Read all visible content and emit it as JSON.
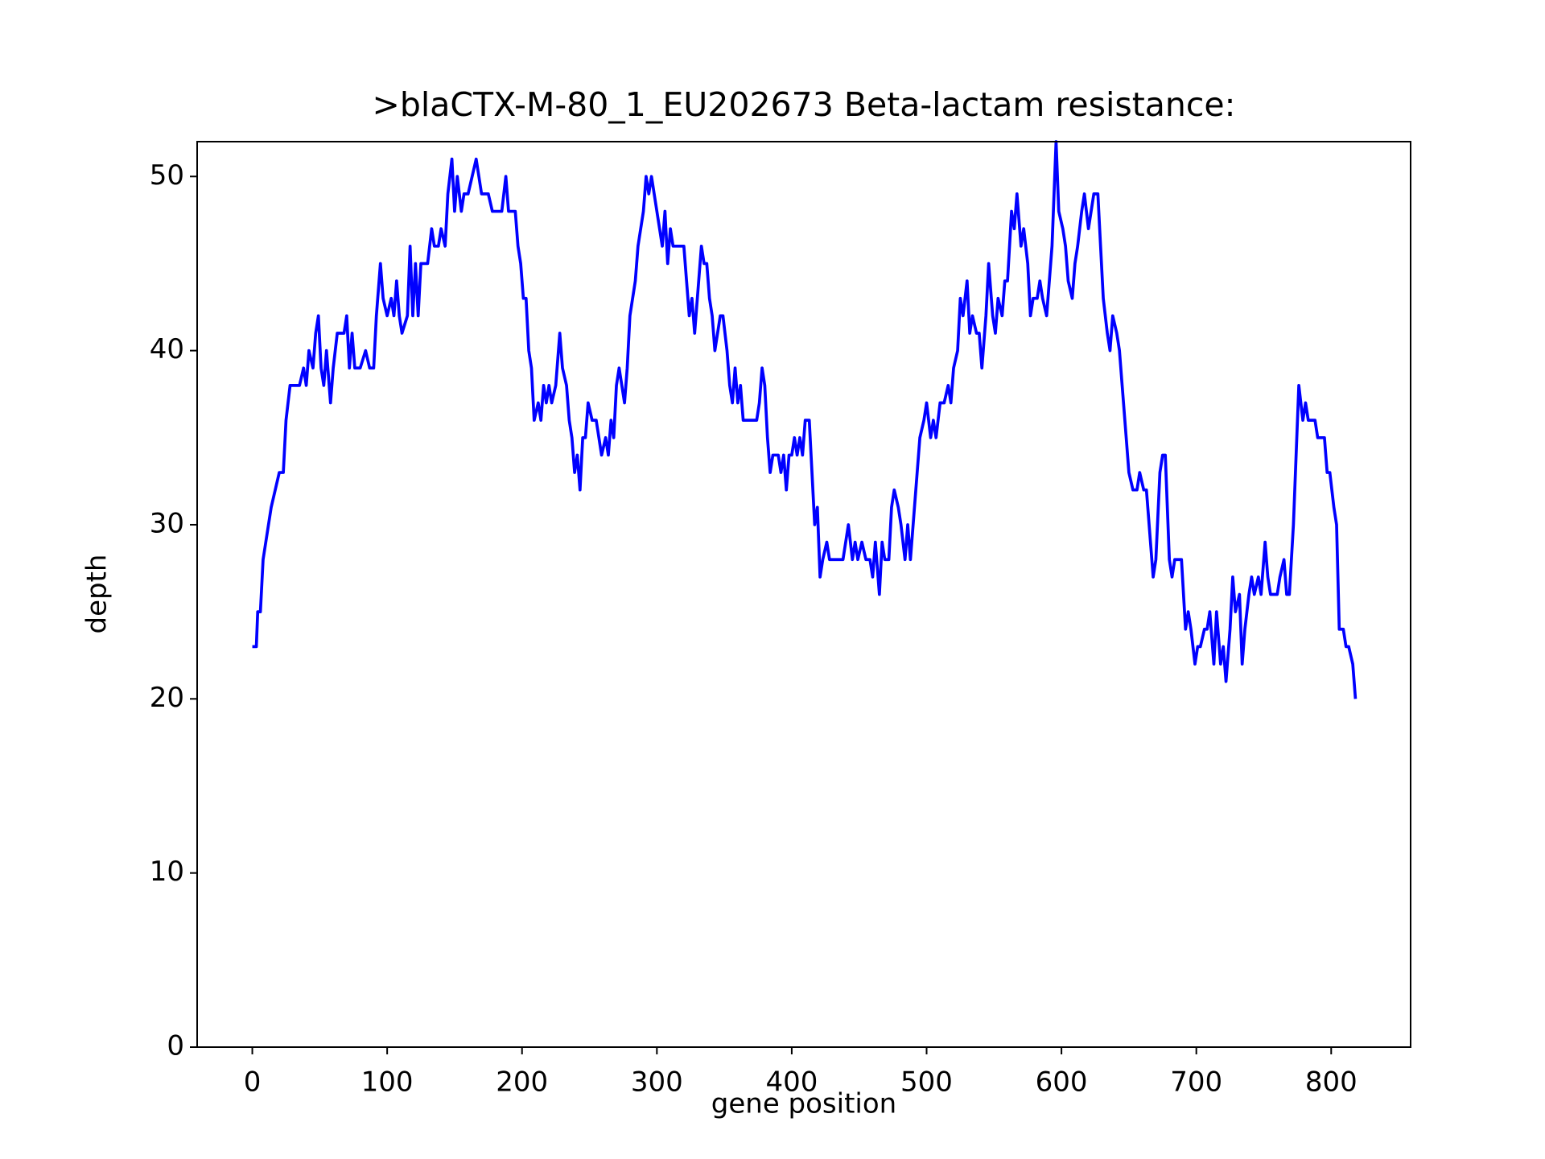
{
  "chart_data": {
    "type": "line",
    "title": ">blaCTX-M-80_1_EU202673 Beta-lactam resistance:",
    "xlabel": "gene position",
    "ylabel": "depth",
    "xlim": [
      -40.9,
      858.9
    ],
    "ylim": [
      0,
      52
    ],
    "xticks": [
      0,
      100,
      200,
      300,
      400,
      500,
      600,
      700,
      800
    ],
    "yticks": [
      0,
      10,
      20,
      30,
      40,
      50
    ],
    "grid": false,
    "series": [
      {
        "name": "depth",
        "color": "#0000ff",
        "x": [
          0,
          3,
          4,
          6,
          8,
          10,
          12,
          14,
          17,
          20,
          23,
          25,
          28,
          35,
          38,
          40,
          42,
          45,
          47,
          49,
          51,
          53,
          55,
          58,
          60,
          63,
          68,
          70,
          72,
          74,
          76,
          80,
          84,
          87,
          90,
          92,
          95,
          97,
          100,
          103,
          105,
          107,
          109,
          111,
          115,
          117,
          119,
          121,
          123,
          125,
          130,
          133,
          135,
          138,
          140,
          143,
          145,
          148,
          150,
          152,
          155,
          157,
          160,
          163,
          166,
          168,
          170,
          175,
          178,
          185,
          188,
          190,
          195,
          197,
          199,
          201,
          203,
          205,
          207,
          209,
          212,
          214,
          216,
          218,
          220,
          222,
          225,
          228,
          230,
          233,
          235,
          237,
          239,
          241,
          243,
          245,
          247,
          249,
          252,
          255,
          257,
          259,
          262,
          264,
          266,
          268,
          270,
          272,
          274,
          276,
          278,
          280,
          282,
          284,
          286,
          288,
          290,
          292,
          294,
          296,
          298,
          300,
          302,
          304,
          306,
          308,
          310,
          312,
          316,
          320,
          322,
          324,
          326,
          328,
          330,
          333,
          335,
          337,
          339,
          341,
          343,
          345,
          347,
          349,
          352,
          354,
          356,
          358,
          360,
          362,
          364,
          368,
          370,
          374,
          376,
          378,
          380,
          382,
          384,
          386,
          390,
          392,
          394,
          396,
          398,
          400,
          402,
          404,
          406,
          408,
          410,
          413,
          415,
          417,
          419,
          421,
          423,
          426,
          428,
          432,
          438,
          440,
          442,
          445,
          447,
          449,
          452,
          455,
          458,
          460,
          462,
          465,
          467,
          469,
          472,
          474,
          476,
          479,
          481,
          484,
          486,
          488,
          491,
          493,
          495,
          498,
          500,
          503,
          505,
          507,
          510,
          513,
          516,
          518,
          520,
          523,
          525,
          527,
          530,
          532,
          534,
          537,
          539,
          541,
          544,
          546,
          549,
          551,
          553,
          556,
          558,
          560,
          563,
          565,
          567,
          570,
          572,
          575,
          577,
          579,
          582,
          584,
          586,
          589,
          591,
          593,
          596,
          598,
          601,
          603,
          605,
          608,
          610,
          612,
          615,
          617,
          620,
          622,
          624,
          627,
          629,
          631,
          634,
          636,
          638,
          641,
          643,
          645,
          648,
          650,
          653,
          656,
          658,
          661,
          663,
          666,
          668,
          670,
          673,
          675,
          677,
          680,
          682,
          684,
          689,
          692,
          694,
          696,
          699,
          701,
          703,
          706,
          708,
          710,
          713,
          715,
          718,
          720,
          722,
          725,
          727,
          729,
          732,
          734,
          736,
          739,
          741,
          743,
          746,
          748,
          751,
          753,
          755,
          760,
          762,
          765,
          767,
          769,
          772,
          774,
          776,
          779,
          781,
          783,
          788,
          790,
          795,
          797,
          799,
          802,
          804,
          806,
          809,
          811,
          813,
          816,
          818
        ],
        "values": [
          23,
          23,
          25,
          25,
          28,
          29,
          30,
          31,
          32,
          33,
          33,
          36,
          38,
          38,
          39,
          38,
          40,
          39,
          41,
          42,
          39,
          38,
          40,
          37,
          39,
          41,
          41,
          42,
          39,
          41,
          39,
          39,
          40,
          39,
          39,
          42,
          45,
          43,
          42,
          43,
          42,
          44,
          42,
          41,
          42,
          46,
          42,
          45,
          42,
          45,
          45,
          47,
          46,
          46,
          47,
          46,
          49,
          51,
          48,
          50,
          48,
          49,
          49,
          50,
          51,
          50,
          49,
          49,
          48,
          48,
          50,
          48,
          48,
          46,
          45,
          43,
          43,
          40,
          39,
          36,
          37,
          36,
          38,
          37,
          38,
          37,
          38,
          41,
          39,
          38,
          36,
          35,
          33,
          34,
          32,
          35,
          35,
          37,
          36,
          36,
          35,
          34,
          35,
          34,
          36,
          35,
          38,
          39,
          38,
          37,
          39,
          42,
          43,
          44,
          46,
          47,
          48,
          50,
          49,
          50,
          49,
          48,
          47,
          46,
          48,
          45,
          47,
          46,
          46,
          46,
          44,
          42,
          43,
          41,
          43,
          46,
          45,
          45,
          43,
          42,
          40,
          41,
          42,
          42,
          40,
          38,
          37,
          39,
          37,
          38,
          36,
          36,
          36,
          36,
          37,
          39,
          38,
          35,
          33,
          34,
          34,
          33,
          34,
          32,
          34,
          34,
          35,
          34,
          35,
          34,
          36,
          36,
          33,
          30,
          31,
          27,
          28,
          29,
          28,
          28,
          28,
          29,
          30,
          28,
          29,
          28,
          29,
          28,
          28,
          27,
          29,
          26,
          29,
          28,
          28,
          31,
          32,
          31,
          30,
          28,
          30,
          28,
          31,
          33,
          35,
          36,
          37,
          35,
          36,
          35,
          37,
          37,
          38,
          37,
          39,
          40,
          43,
          42,
          44,
          41,
          42,
          41,
          41,
          39,
          42,
          45,
          42,
          41,
          43,
          42,
          44,
          44,
          48,
          47,
          49,
          46,
          47,
          45,
          42,
          43,
          43,
          44,
          43,
          42,
          44,
          46,
          52,
          48,
          47,
          46,
          44,
          43,
          45,
          46,
          48,
          49,
          47,
          48,
          49,
          49,
          46,
          43,
          41,
          40,
          42,
          41,
          40,
          38,
          35,
          33,
          32,
          32,
          33,
          32,
          32,
          29,
          27,
          28,
          33,
          34,
          34,
          28,
          27,
          28,
          28,
          24,
          25,
          24,
          22,
          23,
          23,
          24,
          24,
          25,
          22,
          25,
          22,
          23,
          21,
          24,
          27,
          25,
          26,
          22,
          24,
          26,
          27,
          26,
          27,
          26,
          29,
          27,
          26,
          26,
          27,
          28,
          26,
          26,
          30,
          34,
          38,
          36,
          37,
          36,
          36,
          35,
          35,
          33,
          33,
          31,
          30,
          24,
          24,
          23,
          23,
          22,
          20
        ]
      }
    ]
  }
}
